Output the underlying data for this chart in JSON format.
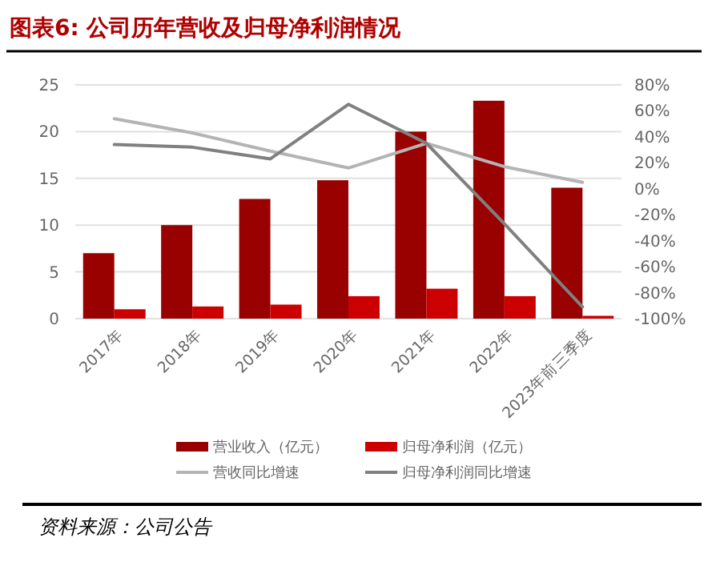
{
  "chart_data": {
    "type": "bar",
    "title": "图表6: 公司历年营收及归母净利润情况",
    "categories": [
      "2017年",
      "2018年",
      "2019年",
      "2020年",
      "2021年",
      "2022年",
      "2023年前三季度"
    ],
    "series": [
      {
        "name": "营业收入（亿元）",
        "color": "#990000",
        "values": [
          7.0,
          10.0,
          12.8,
          14.8,
          20.0,
          23.3,
          14.0
        ]
      },
      {
        "name": "归母净利润（亿元）",
        "color": "#cc0000",
        "values": [
          1.0,
          1.3,
          1.5,
          2.4,
          3.2,
          2.4,
          0.3
        ]
      },
      {
        "name": "营收同比增速",
        "type": "line",
        "axis": "y2",
        "color": "#b4b4b4",
        "values": [
          54,
          43,
          29,
          16,
          35,
          17,
          5
        ]
      },
      {
        "name": "归母净利润同比增速",
        "type": "line",
        "axis": "y2",
        "color": "#808080",
        "values": [
          34,
          32,
          23,
          65,
          35,
          -27,
          -91
        ]
      }
    ],
    "ylim": [
      0,
      25
    ],
    "yticks": [
      0,
      5,
      10,
      15,
      20,
      25
    ],
    "y2lim": [
      -100,
      80
    ],
    "y2ticks": [
      {
        "value": -100,
        "label": "-100%"
      },
      {
        "value": -80,
        "label": "-80%"
      },
      {
        "value": -60,
        "label": "-60%"
      },
      {
        "value": -40,
        "label": "-40%"
      },
      {
        "value": -20,
        "label": "-20%"
      },
      {
        "value": 0,
        "label": "0%"
      },
      {
        "value": 20,
        "label": "20%"
      },
      {
        "value": 40,
        "label": "40%"
      },
      {
        "value": 60,
        "label": "60%"
      },
      {
        "value": 80,
        "label": "80%"
      }
    ],
    "grid": "y",
    "legend": "bottom",
    "marker": "none",
    "annotations": [
      "资料来源：公司公告"
    ]
  }
}
